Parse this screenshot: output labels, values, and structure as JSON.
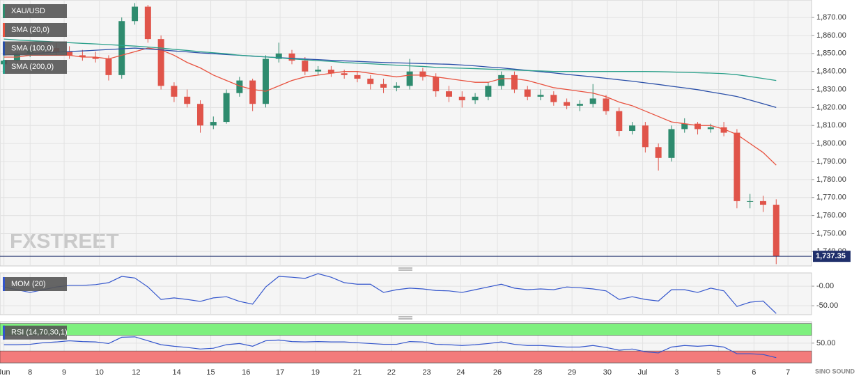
{
  "chart_data": [
    {
      "type": "candlestick",
      "name": "XAU/USD",
      "watermark": "FXSTREET",
      "logo": "SINO SOUND",
      "last_label": "1,737.35",
      "grid": true,
      "colors": {
        "up": "#2e8b6e",
        "down": "#e0544a"
      },
      "x": [
        0,
        1,
        2,
        3,
        4,
        5,
        6,
        7,
        8,
        9,
        10,
        11,
        12,
        13,
        14,
        15,
        16,
        17,
        18,
        19,
        20,
        21,
        22,
        23,
        24,
        25,
        26,
        27,
        28,
        29,
        30,
        31,
        32,
        33,
        34,
        35,
        36,
        37,
        38,
        39,
        40,
        41,
        42,
        43,
        44,
        45,
        46,
        47,
        48,
        49,
        50,
        51,
        52,
        53,
        54,
        55,
        56,
        57,
        58,
        59
      ],
      "open": [
        1844,
        1846,
        1850,
        1852,
        1853,
        1851,
        1849,
        1848,
        1847,
        1838,
        1868,
        1876,
        1858,
        1832,
        1826,
        1822,
        1810,
        1812,
        1828,
        1835,
        1822,
        1847,
        1850,
        1846,
        1840,
        1841,
        1839,
        1838,
        1836,
        1833,
        1831,
        1832,
        1840,
        1837,
        1829,
        1826,
        1824,
        1826,
        1832,
        1838,
        1830,
        1826,
        1827,
        1823,
        1821,
        1822,
        1825,
        1818,
        1807,
        1810,
        1798,
        1792,
        1808,
        1811,
        1808,
        1809,
        1806,
        1768,
        1768,
        1766
      ],
      "high": [
        1850,
        1853,
        1855,
        1856,
        1856,
        1854,
        1852,
        1851,
        1849,
        1870,
        1878,
        1877,
        1860,
        1834,
        1830,
        1824,
        1815,
        1830,
        1837,
        1836,
        1849,
        1856,
        1852,
        1848,
        1843,
        1843,
        1841,
        1840,
        1838,
        1836,
        1834,
        1847,
        1842,
        1839,
        1832,
        1829,
        1828,
        1834,
        1840,
        1840,
        1832,
        1830,
        1829,
        1825,
        1824,
        1833,
        1827,
        1820,
        1812,
        1812,
        1800,
        1810,
        1814,
        1812,
        1811,
        1812,
        1808,
        1772,
        1771,
        1769
      ],
      "low": [
        1842,
        1844,
        1848,
        1850,
        1849,
        1847,
        1846,
        1845,
        1835,
        1836,
        1866,
        1856,
        1830,
        1823,
        1820,
        1806,
        1808,
        1811,
        1826,
        1818,
        1820,
        1845,
        1844,
        1838,
        1838,
        1837,
        1836,
        1834,
        1830,
        1828,
        1829,
        1830,
        1835,
        1826,
        1823,
        1820,
        1822,
        1824,
        1830,
        1828,
        1824,
        1824,
        1821,
        1819,
        1818,
        1820,
        1816,
        1804,
        1805,
        1795,
        1785,
        1790,
        1806,
        1805,
        1806,
        1804,
        1764,
        1764,
        1762,
        1733
      ],
      "close": [
        1846,
        1850,
        1852,
        1853,
        1851,
        1849,
        1848,
        1847,
        1838,
        1868,
        1876,
        1858,
        1832,
        1826,
        1822,
        1810,
        1812,
        1828,
        1835,
        1822,
        1847,
        1850,
        1846,
        1840,
        1841,
        1839,
        1838,
        1836,
        1833,
        1831,
        1832,
        1840,
        1837,
        1829,
        1826,
        1824,
        1826,
        1832,
        1838,
        1830,
        1826,
        1827,
        1823,
        1821,
        1822,
        1825,
        1818,
        1807,
        1810,
        1798,
        1792,
        1808,
        1811,
        1808,
        1809,
        1806,
        1768,
        1768,
        1766,
        1737.35
      ],
      "overlays": [
        {
          "name": "SMA (20,0)",
          "color": "#e8523f",
          "values": [
            1848,
            1848,
            1849,
            1849,
            1849,
            1849,
            1848,
            1848,
            1847,
            1849,
            1851,
            1853,
            1852,
            1849,
            1845,
            1842,
            1838,
            1835,
            1832,
            1830,
            1829,
            1832,
            1835,
            1837,
            1838,
            1839,
            1840,
            1840,
            1839,
            1838,
            1837,
            1838,
            1838,
            1837,
            1836,
            1835,
            1834,
            1834,
            1836,
            1836,
            1835,
            1833,
            1831,
            1830,
            1829,
            1828,
            1826,
            1823,
            1821,
            1818,
            1815,
            1812,
            1811,
            1810,
            1810,
            1808,
            1805,
            1800,
            1795,
            1788
          ]
        },
        {
          "name": "SMA (100,0)",
          "color": "#2a4fa8",
          "values": [
            1849.1,
            1849.5,
            1849.9,
            1850.3,
            1850.7,
            1851.1,
            1851.4,
            1851.8,
            1852.2,
            1852.6,
            1853,
            1852.5,
            1852,
            1851.4,
            1850.9,
            1850.3,
            1849.9,
            1849.4,
            1849,
            1848.5,
            1848.1,
            1847.7,
            1847.3,
            1846.9,
            1846.6,
            1846.2,
            1845.9,
            1845.6,
            1845.3,
            1845,
            1844.8,
            1844.6,
            1844.4,
            1844.2,
            1844,
            1843.6,
            1843.1,
            1842.5,
            1842,
            1841.3,
            1840.6,
            1839.9,
            1839.2,
            1838.4,
            1837.7,
            1837,
            1836.2,
            1835.4,
            1834.6,
            1833.7,
            1832.8,
            1831.8,
            1830.9,
            1829.9,
            1828.6,
            1827.4,
            1826.1,
            1824.1,
            1822.1,
            1820
          ]
        },
        {
          "name": "SMA (200,0)",
          "color": "#2aa08a",
          "values": [
            1858,
            1857.5,
            1857.1,
            1856.8,
            1856.4,
            1856,
            1855.6,
            1855.3,
            1854.9,
            1854.5,
            1854.1,
            1853.6,
            1853,
            1852.3,
            1851.7,
            1851,
            1850.4,
            1849.8,
            1849,
            1848.6,
            1848.1,
            1847.6,
            1847,
            1846.5,
            1846,
            1845.6,
            1845,
            1844.6,
            1844.3,
            1843.9,
            1843.5,
            1843.1,
            1842.8,
            1842.3,
            1842,
            1841.8,
            1841.6,
            1841.3,
            1841.1,
            1840.8,
            1840.5,
            1840.3,
            1840,
            1840,
            1840,
            1840,
            1840,
            1840,
            1840,
            1840,
            1839.9,
            1839.7,
            1839.5,
            1839.3,
            1839.1,
            1838.8,
            1838.2,
            1837.2,
            1836.1,
            1835
          ]
        }
      ],
      "xlim": [
        -0.3,
        61.7
      ],
      "ylim": [
        1732,
        1879.7
      ],
      "yticks": [
        {
          "value": 1740,
          "label": "1,740.00"
        },
        {
          "value": 1750,
          "label": "1,750.00"
        },
        {
          "value": 1760,
          "label": "1,760.00"
        },
        {
          "value": 1770,
          "label": "1,770.00"
        },
        {
          "value": 1780,
          "label": "1,780.00"
        },
        {
          "value": 1790,
          "label": "1,790.00"
        },
        {
          "value": 1800,
          "label": "1,800.00"
        },
        {
          "value": 1810,
          "label": "1,810.00"
        },
        {
          "value": 1820,
          "label": "1,820.00"
        },
        {
          "value": 1830,
          "label": "1,830.00"
        },
        {
          "value": 1840,
          "label": "1,840.00"
        },
        {
          "value": 1850,
          "label": "1,850.00"
        },
        {
          "value": 1860,
          "label": "1,860.00"
        },
        {
          "value": 1870,
          "label": "1,870.00"
        }
      ],
      "xticks": [
        {
          "value": 0,
          "label": "Jun"
        },
        {
          "value": 2,
          "label": "8"
        },
        {
          "value": 4.6,
          "label": "9"
        },
        {
          "value": 7.3,
          "label": "10"
        },
        {
          "value": 10.1,
          "label": "12"
        },
        {
          "value": 13.2,
          "label": "14"
        },
        {
          "value": 15.8,
          "label": "15"
        },
        {
          "value": 18.5,
          "label": "16"
        },
        {
          "value": 21.1,
          "label": "17"
        },
        {
          "value": 23.8,
          "label": "19"
        },
        {
          "value": 27,
          "label": "21"
        },
        {
          "value": 29.6,
          "label": "22"
        },
        {
          "value": 32.3,
          "label": "23"
        },
        {
          "value": 34.9,
          "label": "24"
        },
        {
          "value": 37.7,
          "label": "26"
        },
        {
          "value": 40.8,
          "label": "28"
        },
        {
          "value": 43.4,
          "label": "29"
        },
        {
          "value": 46.1,
          "label": "30"
        },
        {
          "value": 48.8,
          "label": "Jul"
        },
        {
          "value": 51.4,
          "label": "3"
        },
        {
          "value": 54.6,
          "label": "5"
        },
        {
          "value": 57.3,
          "label": "6"
        },
        {
          "value": 59.9,
          "label": "7"
        }
      ]
    },
    {
      "type": "line",
      "name": "MOM (20)",
      "color": "#3355cc",
      "values": [
        -2,
        -9,
        -16,
        -9,
        -2,
        2,
        2,
        4,
        9,
        25,
        21,
        -2,
        -34,
        -30,
        -34,
        -39,
        -30,
        -27,
        -39,
        -46,
        -2,
        25,
        23,
        20,
        32,
        23,
        9,
        5,
        5,
        -16,
        -9,
        -5,
        -7,
        -11,
        -12,
        -16,
        -9,
        -2,
        5,
        -5,
        -9,
        -7,
        -9,
        -2,
        -4,
        -7,
        -12,
        -34,
        -27,
        -34,
        -38,
        -9,
        -9,
        -16,
        -5,
        -12,
        -52,
        -41,
        -38,
        -70
      ],
      "ylim": [
        -73,
        34
      ],
      "yticks": [
        {
          "value": 0,
          "label": "-0.00"
        },
        {
          "value": -50,
          "label": "-50.00"
        }
      ]
    },
    {
      "type": "line",
      "name": "RSI (14,70,30,1)",
      "color": "#3355cc",
      "values": [
        46,
        46,
        47,
        51,
        53,
        56,
        54,
        53,
        49,
        65,
        66,
        56,
        46,
        42,
        39,
        35,
        37,
        46,
        49,
        42,
        56,
        58,
        54,
        53,
        54,
        53,
        53,
        51,
        49,
        47,
        47,
        54,
        53,
        47,
        46,
        44,
        46,
        49,
        53,
        47,
        44,
        44,
        42,
        40,
        40,
        44,
        39,
        32,
        35,
        28,
        25,
        40,
        44,
        42,
        44,
        40,
        23,
        23,
        21,
        13
      ],
      "ylim": [
        0,
        100
      ],
      "yticks": [
        {
          "value": 50,
          "label": "50.00"
        }
      ],
      "bands": [
        {
          "from": 70,
          "to": 100,
          "color": "#7ef07e"
        },
        {
          "from": 0,
          "to": 30,
          "color": "#f37b7b"
        }
      ]
    }
  ]
}
